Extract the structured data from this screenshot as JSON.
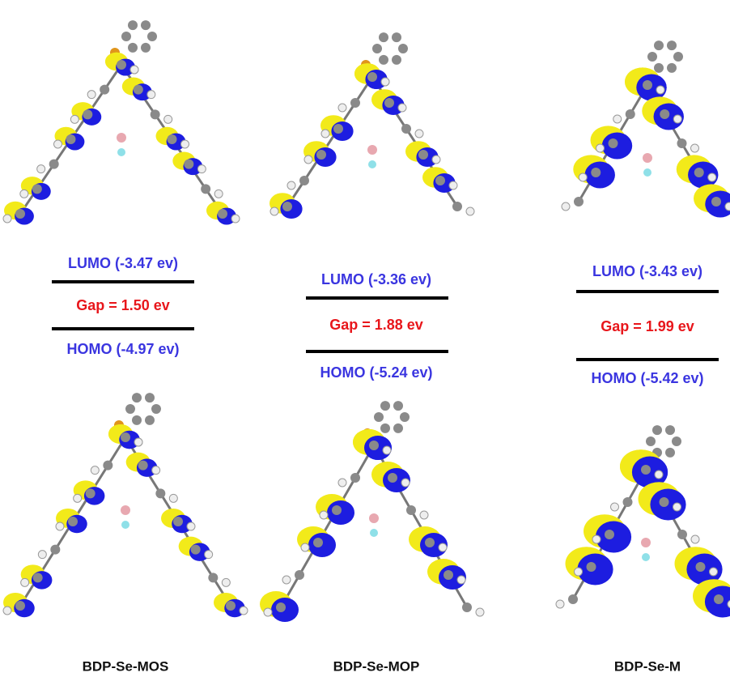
{
  "columns": [
    {
      "lumo": "LUMO (-3.47 ev)",
      "gap": "Gap = 1.50 ev",
      "homo": "HOMO (-4.97 ev)",
      "name": "BDP-Se-MOS"
    },
    {
      "lumo": "LUMO (-3.36 ev)",
      "gap": "Gap = 1.88 ev",
      "homo": "HOMO (-5.24 ev)",
      "name": "BDP-Se-MOP"
    },
    {
      "lumo": "LUMO (-3.43 ev)",
      "gap": "Gap = 1.99 ev",
      "homo": "HOMO (-5.42 ev)",
      "name": "BDP-Se-M"
    }
  ]
}
